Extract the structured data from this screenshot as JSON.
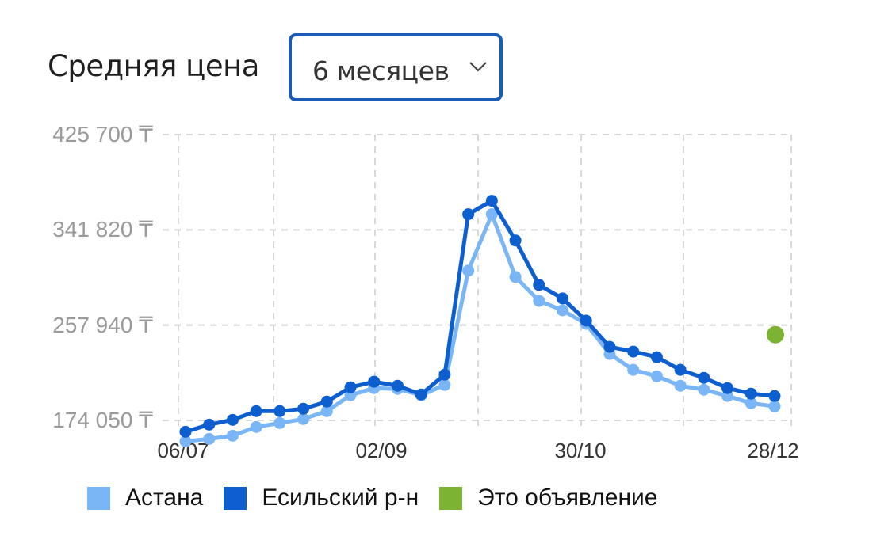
{
  "header": {
    "title": "Средняя цена",
    "period_select": {
      "value": "6 месяцев",
      "icon": "chevron-down-icon"
    }
  },
  "colors": {
    "astana": "#7ab6f5",
    "esil": "#0d5fcf",
    "this_listing": "#7db332",
    "grid": "#d8d8d8",
    "select_border": "#1a5bb5"
  },
  "chart_data": {
    "type": "line",
    "title": "Средняя цена",
    "xlabel": "",
    "ylabel": "",
    "currency": "₸",
    "yticks": [
      "425 700 ₸",
      "341 820 ₸",
      "257 940 ₸",
      "174 050 ₸"
    ],
    "ytick_values": [
      425700,
      341820,
      257940,
      174050
    ],
    "ylim": [
      174050,
      425700
    ],
    "xticks": [
      "06/07",
      "02/09",
      "30/10",
      "28/12"
    ],
    "grid": true,
    "legend_position": "bottom",
    "n_points": 26,
    "series": [
      {
        "name": "Астана",
        "color": "#7ab6f5",
        "values": [
          155660,
          157760,
          160560,
          168240,
          171740,
          175230,
          182220,
          196200,
          202490,
          201790,
          196200,
          205280,
          305930,
          355560,
          300330,
          279350,
          270960,
          259080,
          232520,
          218540,
          212950,
          204580,
          201080,
          195490,
          189200,
          186400
        ]
      },
      {
        "name": "Есильский р-н",
        "color": "#0d5fcf",
        "values": [
          164040,
          170330,
          174520,
          182220,
          182220,
          184310,
          190600,
          203190,
          208080,
          204580,
          196900,
          214350,
          355560,
          367440,
          332490,
          293350,
          281470,
          261900,
          238820,
          234620,
          229730,
          218540,
          211550,
          202490,
          197590,
          195490
        ]
      },
      {
        "name": "Это объявление",
        "color": "#7db332",
        "points": [
          {
            "index": 25,
            "value": 249550
          }
        ]
      }
    ]
  },
  "legend": {
    "items": [
      {
        "label": "Астана",
        "color": "#7ab6f5"
      },
      {
        "label": "Есильский р-н",
        "color": "#0d5fcf"
      },
      {
        "label": "Это объявление",
        "color": "#7db332"
      }
    ]
  }
}
